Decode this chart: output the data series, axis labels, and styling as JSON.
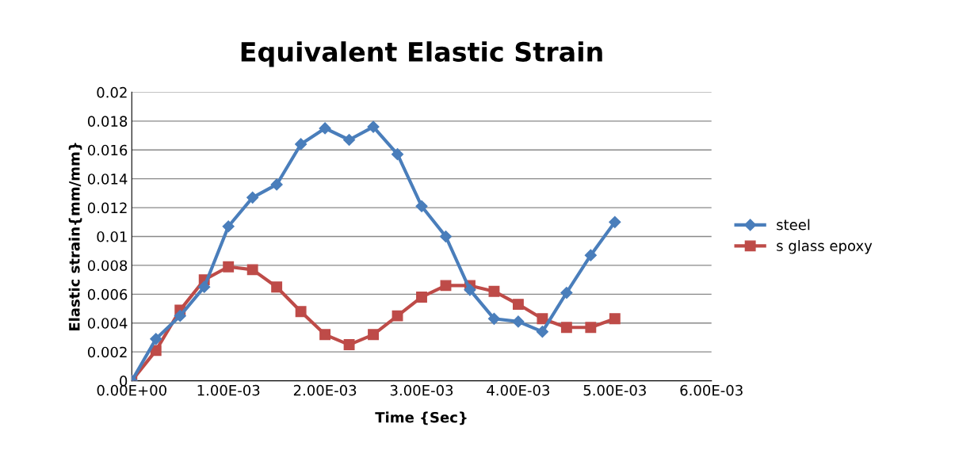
{
  "chart_data": {
    "type": "line",
    "title": "Equivalent Elastic Strain",
    "xlabel": "Time {Sec}",
    "ylabel": "Elastic strain{mm/mm}",
    "x": [
      0,
      0.00025,
      0.0005,
      0.00075,
      0.001,
      0.00125,
      0.0015,
      0.00175,
      0.002,
      0.00225,
      0.0025,
      0.00275,
      0.003,
      0.00325,
      0.0035,
      0.00375,
      0.004,
      0.00425,
      0.0045,
      0.00475,
      0.005
    ],
    "series": [
      {
        "name": "steel",
        "color": "#4a7ebb",
        "marker": "diamond",
        "values": [
          0,
          0.0029,
          0.0045,
          0.0065,
          0.0107,
          0.0127,
          0.0136,
          0.0164,
          0.0175,
          0.0167,
          0.0176,
          0.0157,
          0.0121,
          0.01,
          0.0063,
          0.0043,
          0.0041,
          0.0034,
          0.0061,
          0.0087,
          0.011
        ]
      },
      {
        "name": "s glass epoxy",
        "color": "#be4b48",
        "marker": "square",
        "values": [
          0,
          0.0021,
          0.0049,
          0.007,
          0.0079,
          0.0077,
          0.0065,
          0.0048,
          0.0032,
          0.0025,
          0.0032,
          0.0045,
          0.0058,
          0.0066,
          0.0066,
          0.0062,
          0.0053,
          0.0043,
          0.0037,
          0.0037,
          0.0043
        ]
      }
    ],
    "xlim": [
      0,
      0.006
    ],
    "xticks": [
      {
        "value": 0,
        "label": "0.00E+00"
      },
      {
        "value": 0.001,
        "label": "1.00E-03"
      },
      {
        "value": 0.002,
        "label": "2.00E-03"
      },
      {
        "value": 0.003,
        "label": "3.00E-03"
      },
      {
        "value": 0.004,
        "label": "4.00E-03"
      },
      {
        "value": 0.005,
        "label": "5.00E-03"
      },
      {
        "value": 0.006,
        "label": "6.00E-03"
      }
    ],
    "ylim": [
      0,
      0.02
    ],
    "yticks": [
      0,
      0.002,
      0.004,
      0.006,
      0.008,
      0.01,
      0.012,
      0.014,
      0.016,
      0.018,
      0.02
    ],
    "grid": "y",
    "legend": "right",
    "line_style": "solid"
  }
}
